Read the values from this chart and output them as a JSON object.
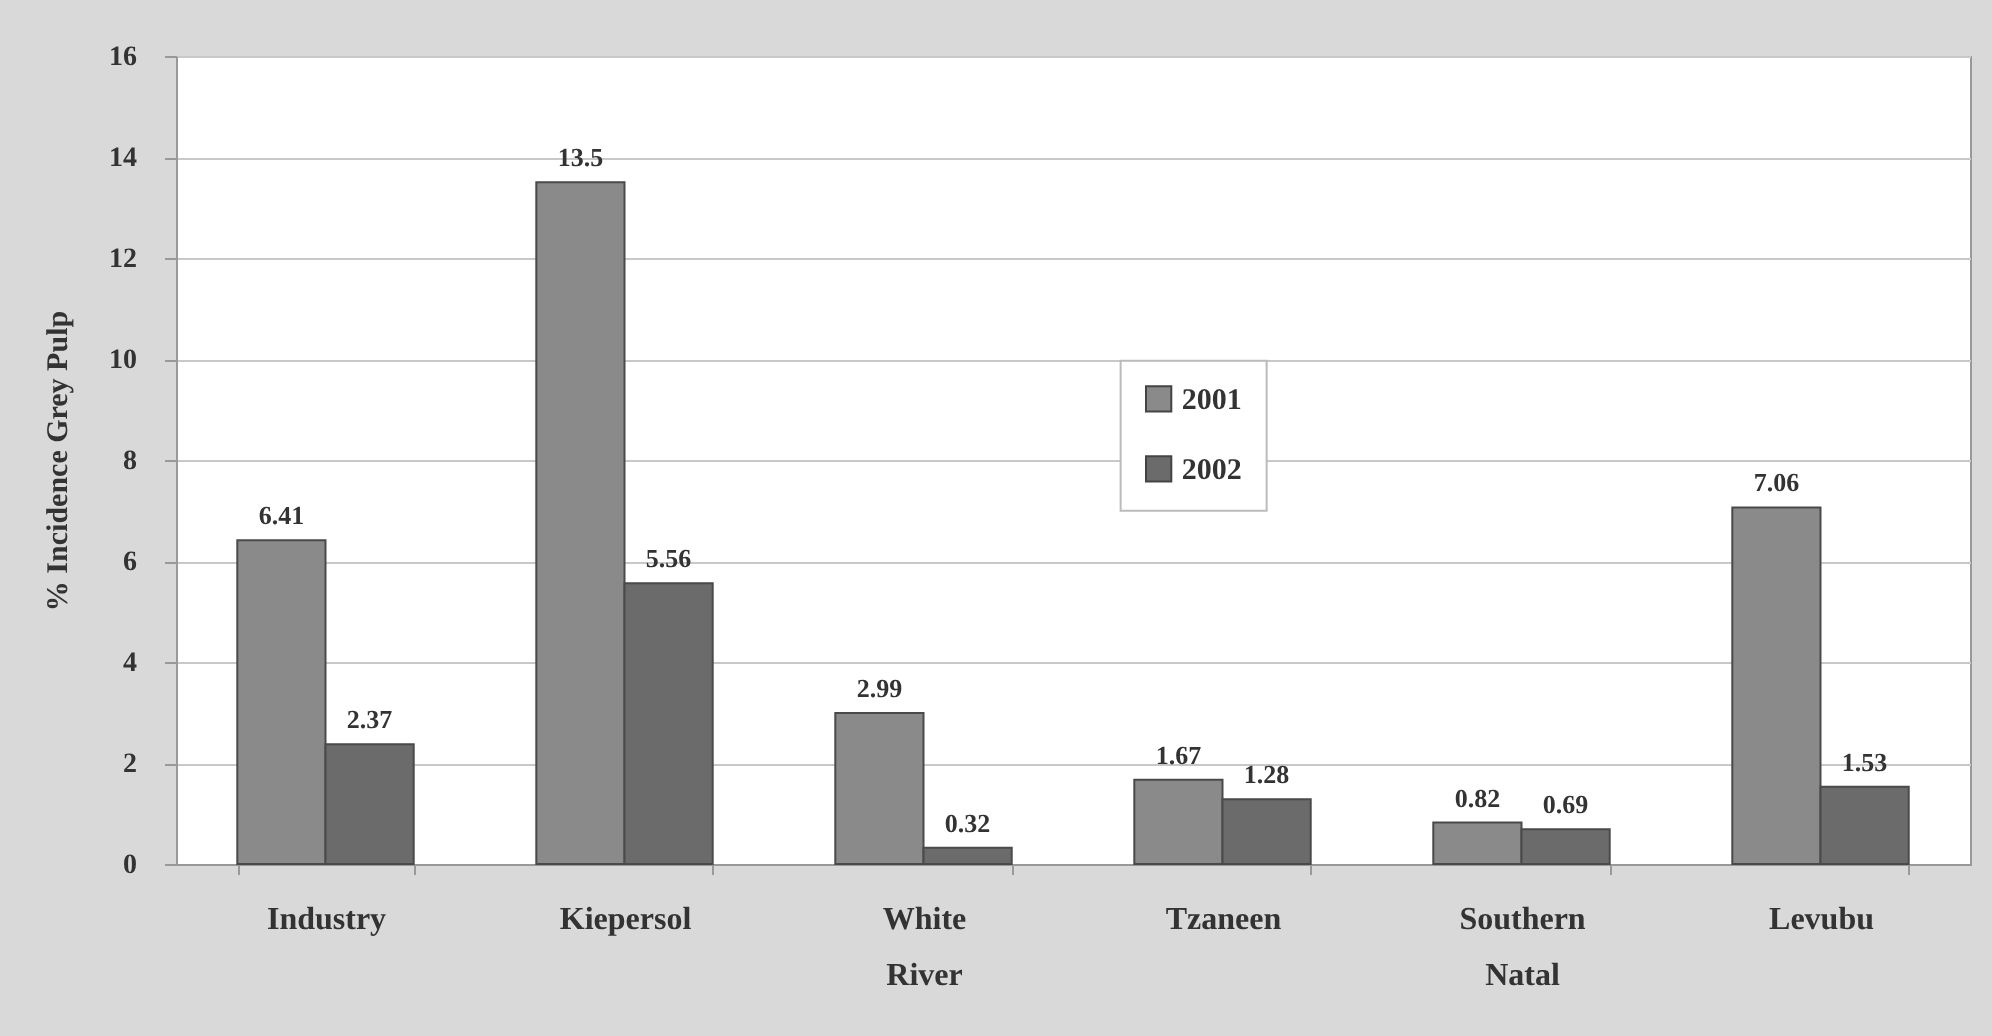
{
  "chart_data": {
    "type": "bar",
    "ylabel": "% Incidence Grey Pulp",
    "categories": [
      "Industry",
      "Kiepersol",
      "White River",
      "Tzaneen",
      "Southern Natal",
      "Levubu"
    ],
    "series": [
      {
        "name": "2001",
        "color": "#8a8a8a",
        "values": [
          6.41,
          13.5,
          2.99,
          1.67,
          0.82,
          7.06
        ]
      },
      {
        "name": "2002",
        "color": "#6b6b6b",
        "values": [
          2.37,
          5.56,
          0.32,
          1.28,
          0.69,
          1.53
        ]
      }
    ],
    "ylim": [
      0,
      16
    ],
    "yticks": [
      0,
      2,
      4,
      6,
      8,
      10,
      12,
      14,
      16
    ],
    "grid": "y",
    "legend": "center",
    "data_labels": true
  }
}
